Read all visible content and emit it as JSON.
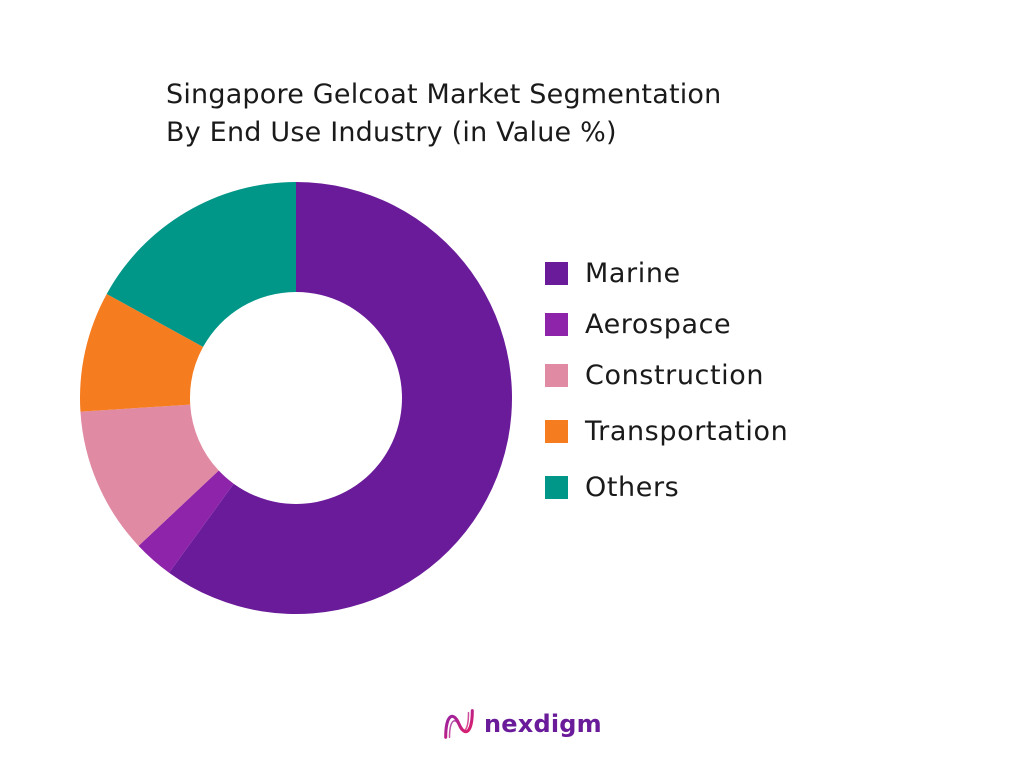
{
  "chart_data": {
    "type": "pie",
    "variant": "donut",
    "title_lines": [
      "Singapore Gelcoat Market Segmentation",
      "By End Use Industry (in Value %)"
    ],
    "unit": "%",
    "series": [
      {
        "categories": [
          "Marine",
          "Aerospace",
          "Construction",
          "Transportation",
          "Others"
        ],
        "values": [
          60,
          3,
          11,
          9,
          17
        ],
        "colors": [
          "#6a1b9a",
          "#8e24aa",
          "#e08aa3",
          "#f57c1f",
          "#009688"
        ]
      }
    ],
    "start_angle_deg": 0,
    "direction": "clockwise",
    "legend_position": "right"
  },
  "brand": {
    "name": "nexdigm",
    "name_color": "#6a1b9a",
    "mark_colors": [
      "#8e24aa",
      "#e91e63"
    ]
  }
}
